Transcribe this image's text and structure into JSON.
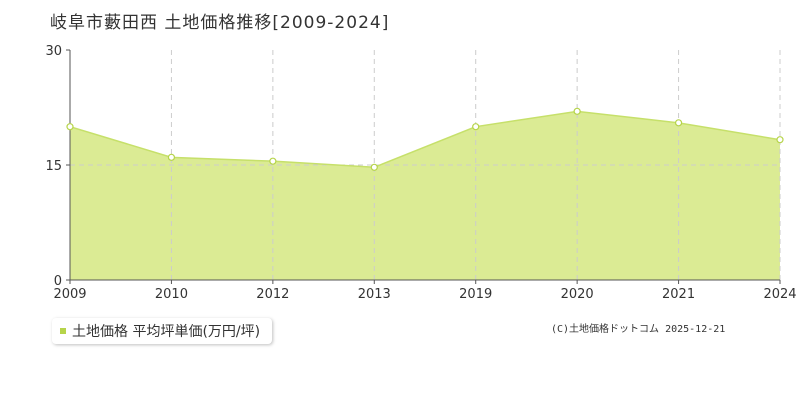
{
  "title": "岐阜市藪田西 土地価格推移[2009-2024]",
  "legend_label": "土地価格 平均坪単価(万円/坪)",
  "copyright": "(C)土地価格ドットコム 2025-12-21",
  "colors": {
    "fill": "#dbeb94",
    "line": "#c6e06a",
    "grid": "#cccccc",
    "axis": "#555555",
    "marker": "#b6d44a"
  },
  "chart_data": {
    "type": "area",
    "title": "岐阜市藪田西 土地価格推移[2009-2024]",
    "xlabel": "",
    "ylabel": "",
    "x": [
      "2009",
      "2010",
      "2012",
      "2013",
      "2019",
      "2020",
      "2021",
      "2024"
    ],
    "series": [
      {
        "name": "土地価格 平均坪単価(万円/坪)",
        "values": [
          20.0,
          16.0,
          15.5,
          14.7,
          20.0,
          22.0,
          20.5,
          18.3
        ]
      }
    ],
    "ylim": [
      0,
      30
    ],
    "yticks": [
      0,
      15,
      30
    ],
    "grid": true,
    "legend": "bottom-left"
  }
}
